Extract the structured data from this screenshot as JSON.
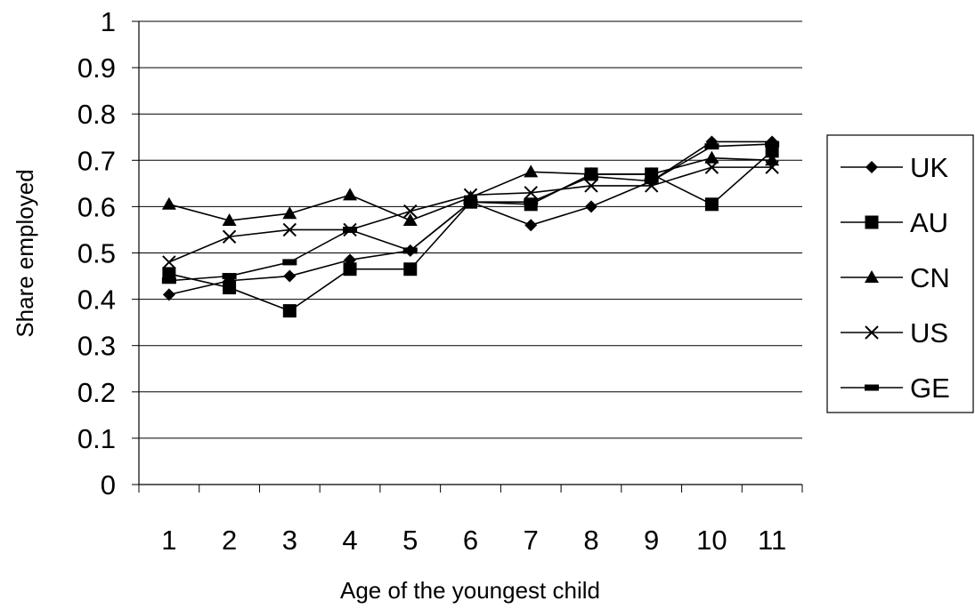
{
  "chart_data": {
    "type": "line",
    "title": "",
    "xlabel": "Age of the youngest child",
    "ylabel": "Share employed",
    "x": [
      1,
      2,
      3,
      4,
      5,
      6,
      7,
      8,
      9,
      10,
      11
    ],
    "xticks": [
      "1",
      "2",
      "3",
      "4",
      "5",
      "6",
      "7",
      "8",
      "9",
      "10",
      "11"
    ],
    "yticks": [
      "0",
      "0.1",
      "0.2",
      "0.3",
      "0.4",
      "0.5",
      "0.6",
      "0.7",
      "0.8",
      "0.9",
      "1"
    ],
    "ylim": [
      0,
      1
    ],
    "grid": true,
    "legend_position": "right",
    "series": [
      {
        "name": "UK",
        "marker": "diamond",
        "values": [
          0.41,
          0.44,
          0.45,
          0.485,
          0.505,
          0.61,
          0.56,
          0.6,
          0.655,
          0.74,
          0.74
        ]
      },
      {
        "name": "AU",
        "marker": "square",
        "values": [
          0.455,
          0.425,
          0.375,
          0.465,
          0.465,
          0.61,
          0.605,
          0.67,
          0.67,
          0.605,
          0.72
        ]
      },
      {
        "name": "CN",
        "marker": "triangle",
        "values": [
          0.605,
          0.57,
          0.585,
          0.625,
          0.57,
          0.62,
          0.675,
          0.67,
          0.67,
          0.705,
          0.7
        ]
      },
      {
        "name": "US",
        "marker": "x",
        "values": [
          0.48,
          0.535,
          0.55,
          0.55,
          0.59,
          0.625,
          0.63,
          0.645,
          0.645,
          0.685,
          0.685
        ]
      },
      {
        "name": "GE",
        "marker": "dash",
        "values": [
          0.44,
          0.45,
          0.48,
          0.55,
          0.505,
          0.61,
          0.61,
          0.665,
          0.655,
          0.73,
          0.735
        ]
      }
    ]
  }
}
